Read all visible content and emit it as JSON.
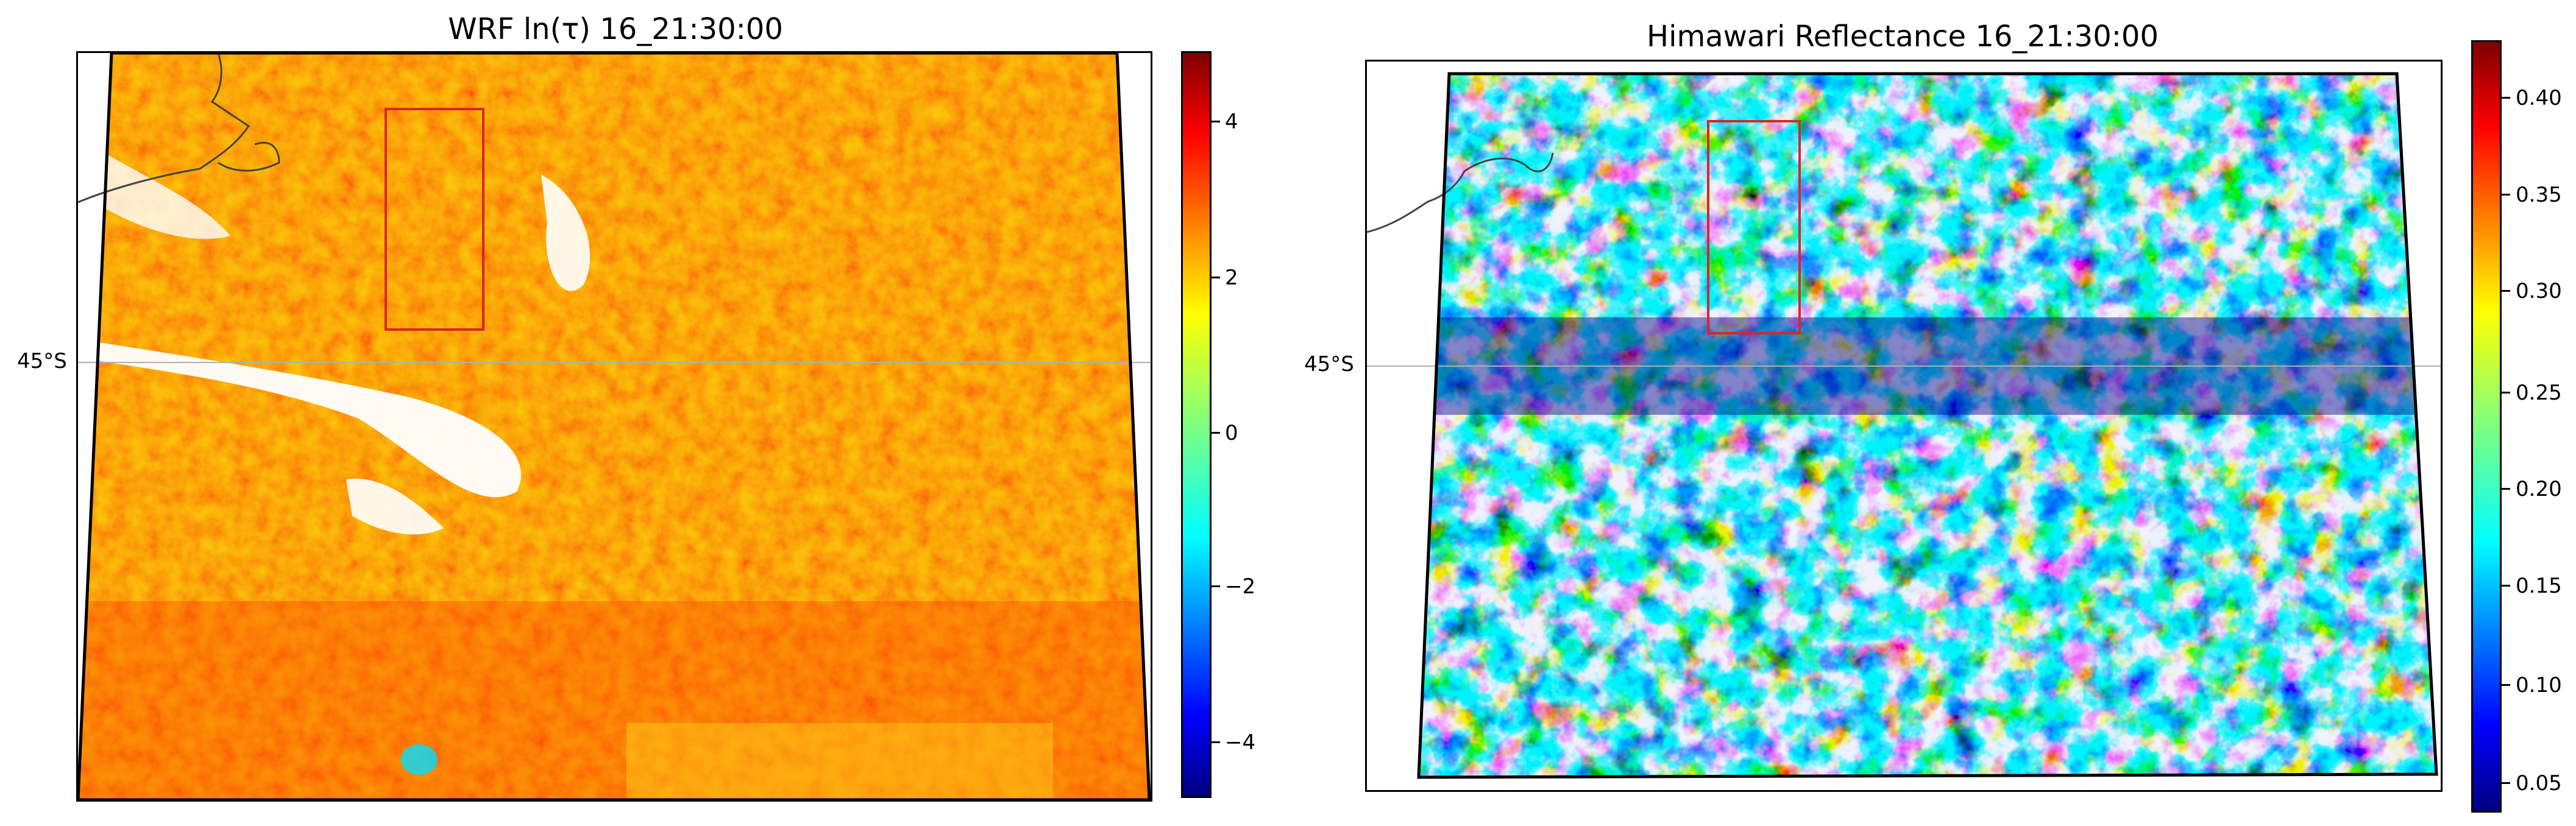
{
  "panels": [
    {
      "title": "WRF ln(τ) 16_21:30:00",
      "lat_label": "45°S",
      "colorbar": {
        "colormap": "jet",
        "range": [
          -4.8,
          4.8
        ],
        "ticks": [
          "−4",
          "−2",
          "0",
          "2",
          "4"
        ]
      }
    },
    {
      "title": "Himawari Reflectance 16_21:30:00",
      "lat_label": "45°S",
      "colorbar": {
        "colormap": "jet",
        "range": [
          0.04,
          0.43
        ],
        "ticks": [
          "0.05",
          "0.10",
          "0.15",
          "0.20",
          "0.25",
          "0.30",
          "0.35",
          "0.40"
        ]
      }
    }
  ],
  "colors": {
    "box_outline": "#d62728",
    "domain_outline": "#000000",
    "gridline": "#b0b0b0",
    "coastline": "#444444"
  }
}
